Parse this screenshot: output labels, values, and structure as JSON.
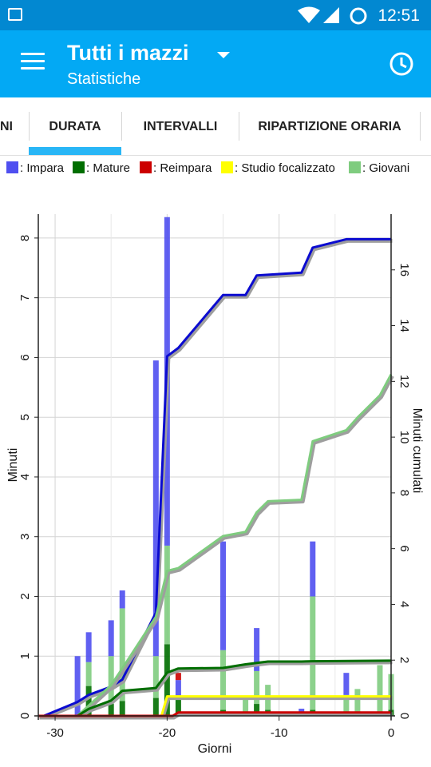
{
  "status_bar": {
    "time": "12:51"
  },
  "app_bar": {
    "title": "Tutti i mazzi",
    "subtitle": "Statistiche"
  },
  "tabs": [
    {
      "label": "NI"
    },
    {
      "label": "DURATA",
      "selected": true
    },
    {
      "label": "INTERVALLI"
    },
    {
      "label": "RIPARTIZIONE ORARIA"
    }
  ],
  "colors": {
    "status_bar": "#0288d1",
    "app_bar": "#03a9f4",
    "tab_indicator": "#29b6f6",
    "impara": "#4f4ff0",
    "mature": "#006e00",
    "reimpara": "#cc0000",
    "studio_focalizzato": "#ffff00",
    "giovani": "#7fcc7f"
  },
  "legend": [
    {
      "label": ": Impara",
      "color": "#4f4ff0"
    },
    {
      "label": ": Mature",
      "color": "#006e00"
    },
    {
      "label": ": Reimpara",
      "color": "#cc0000"
    },
    {
      "label": ": Studio focalizzato",
      "color": "#ffff00"
    },
    {
      "label": ": Giovani",
      "color": "#7fcc7f"
    }
  ],
  "chart_data": {
    "type": "bar",
    "xlabel": "Giorni",
    "ylabel": "Minuti",
    "y2label": "Minuti cumulati",
    "xlim": [
      -31.5,
      0
    ],
    "ylim": [
      0,
      8.4
    ],
    "y2lim": [
      0,
      18
    ],
    "xticks": [
      -30,
      -20,
      -10,
      0
    ],
    "yticks": [
      0,
      1,
      2,
      3,
      4,
      5,
      6,
      7,
      8
    ],
    "y2ticks": [
      0,
      2,
      4,
      6,
      8,
      10,
      12,
      14,
      16
    ],
    "grid": true,
    "legend_position": "top",
    "bars": [
      {
        "x": -28,
        "mature": 0,
        "giovani": 0,
        "impara": 1.0,
        "reimpara": 0,
        "studio_focalizzato": 0
      },
      {
        "x": -27,
        "mature": 0.5,
        "giovani": 0.4,
        "impara": 0.5,
        "reimpara": 0,
        "studio_focalizzato": 0
      },
      {
        "x": -25,
        "mature": 0.2,
        "giovani": 0.8,
        "impara": 0.6,
        "reimpara": 0,
        "studio_focalizzato": 0
      },
      {
        "x": -24,
        "mature": 0.25,
        "giovani": 1.55,
        "impara": 0.3,
        "reimpara": 0,
        "studio_focalizzato": 0
      },
      {
        "x": -21,
        "mature": 0.3,
        "giovani": 0.7,
        "impara": 4.95,
        "reimpara": 0,
        "studio_focalizzato": 0
      },
      {
        "x": -20,
        "mature": 1.2,
        "giovani": 1.65,
        "impara": 5.5,
        "reimpara": 0,
        "studio_focalizzato": 0
      },
      {
        "x": -19,
        "mature": 0.3,
        "giovani": 0,
        "impara": 0.3,
        "reimpara": 0.12,
        "studio_focalizzato": 0
      },
      {
        "x": -15,
        "mature": 0.1,
        "giovani": 1.0,
        "impara": 1.82,
        "reimpara": 0,
        "studio_focalizzato": 0
      },
      {
        "x": -13,
        "mature": 0.05,
        "giovani": 0.25,
        "impara": 0,
        "reimpara": 0,
        "studio_focalizzato": 0
      },
      {
        "x": -12,
        "mature": 0.2,
        "giovani": 0.55,
        "impara": 0.72,
        "reimpara": 0,
        "studio_focalizzato": 0
      },
      {
        "x": -11,
        "mature": 0.1,
        "giovani": 0.42,
        "impara": 0,
        "reimpara": 0,
        "studio_focalizzato": 0
      },
      {
        "x": -8,
        "mature": 0,
        "giovani": 0,
        "impara": 0.12,
        "reimpara": 0,
        "studio_focalizzato": 0
      },
      {
        "x": -7,
        "mature": 0.1,
        "giovani": 1.9,
        "impara": 0.92,
        "reimpara": 0,
        "studio_focalizzato": 0
      },
      {
        "x": -4,
        "mature": 0.05,
        "giovani": 0.3,
        "impara": 0.37,
        "reimpara": 0,
        "studio_focalizzato": 0
      },
      {
        "x": -3,
        "mature": 0,
        "giovani": 0.45,
        "impara": 0,
        "reimpara": 0,
        "studio_focalizzato": 0
      },
      {
        "x": -1,
        "mature": 0.05,
        "giovani": 0.8,
        "impara": 0,
        "reimpara": 0,
        "studio_focalizzato": 0
      },
      {
        "x": 0,
        "mature": 0.1,
        "giovani": 0.6,
        "impara": 0,
        "reimpara": 0,
        "studio_focalizzato": 0
      }
    ],
    "series": [
      {
        "name": "Impara",
        "color": "#0b0bd0",
        "points": [
          [
            -31,
            0
          ],
          [
            -28,
            0.5
          ],
          [
            -27,
            0.75
          ],
          [
            -25,
            1.05
          ],
          [
            -24,
            1.3
          ],
          [
            -21,
            3.7
          ],
          [
            -20,
            12.9
          ],
          [
            -19,
            13.2
          ],
          [
            -15,
            15.1
          ],
          [
            -13,
            15.1
          ],
          [
            -12,
            15.8
          ],
          [
            -8,
            15.9
          ],
          [
            -7,
            16.8
          ],
          [
            -4,
            17.1
          ],
          [
            0,
            17.1
          ]
        ]
      },
      {
        "name": "Giovani",
        "color": "#7fcc7f",
        "points": [
          [
            -28,
            0
          ],
          [
            -25,
            1.1
          ],
          [
            -24,
            1.7
          ],
          [
            -21,
            3.55
          ],
          [
            -20,
            5.2
          ],
          [
            -19,
            5.3
          ],
          [
            -15,
            6.45
          ],
          [
            -13,
            6.6
          ],
          [
            -12,
            7.3
          ],
          [
            -11,
            7.7
          ],
          [
            -8,
            7.75
          ],
          [
            -7,
            9.85
          ],
          [
            -4,
            10.25
          ],
          [
            -3,
            10.7
          ],
          [
            -1,
            11.5
          ],
          [
            0,
            12.25
          ]
        ]
      },
      {
        "name": "Mature",
        "color": "#006e00",
        "points": [
          [
            -28,
            0
          ],
          [
            -27,
            0.25
          ],
          [
            -25,
            0.55
          ],
          [
            -24,
            0.9
          ],
          [
            -21,
            1.0
          ],
          [
            -20,
            1.55
          ],
          [
            -19,
            1.7
          ],
          [
            -15,
            1.72
          ],
          [
            -13,
            1.85
          ],
          [
            -12,
            1.9
          ],
          [
            -11,
            1.95
          ],
          [
            -8,
            1.95
          ],
          [
            -7,
            1.96
          ],
          [
            0,
            1.98
          ]
        ]
      },
      {
        "name": "Studio focalizzato",
        "color": "#ffff00",
        "points": [
          [
            -31.5,
            0
          ],
          [
            -20.5,
            0
          ],
          [
            -20,
            0.7
          ],
          [
            0,
            0.7
          ]
        ]
      },
      {
        "name": "Reimpara",
        "color": "#cc0000",
        "points": [
          [
            -31.5,
            0
          ],
          [
            -19.5,
            0
          ],
          [
            -19,
            0.12
          ],
          [
            0,
            0.12
          ]
        ]
      }
    ]
  }
}
